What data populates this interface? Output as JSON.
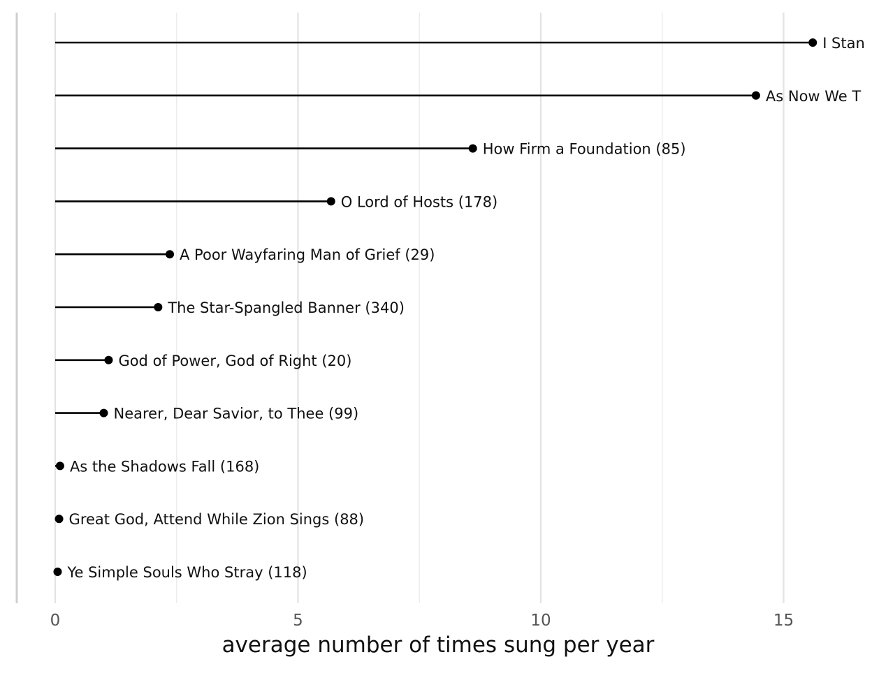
{
  "chart_data": {
    "type": "lollipop",
    "orientation": "horizontal",
    "xlabel": "average number of times sung per year",
    "ylabel": "",
    "title": "",
    "xlim": [
      0,
      16.5
    ],
    "xticks": [
      0,
      5,
      10,
      15
    ],
    "xtick_labels": [
      "0",
      "5",
      "10",
      "15"
    ],
    "grid": "vertical gridlines only",
    "legend": "none",
    "label_placement": "right of each point",
    "colors": {
      "stem": "#000000",
      "point": "#000000",
      "grid_major": "#e3e3e3",
      "grid_minor": "#ececec",
      "axis_line": "#cfcfcf",
      "tick_label": "#555555",
      "axis_title": "#111111"
    },
    "series": [
      {
        "points": [
          {
            "label": "I Stan",
            "value": 15.6
          },
          {
            "label": "As Now We T",
            "value": 14.43
          },
          {
            "label": "How Firm a Foundation (85)",
            "value": 8.6
          },
          {
            "label": "O Lord of Hosts (178)",
            "value": 5.68
          },
          {
            "label": "A Poor Wayfaring Man of Grief (29)",
            "value": 2.36
          },
          {
            "label": "The Star-Spangled Banner (340)",
            "value": 2.12
          },
          {
            "label": "God of Power, God of Right (20)",
            "value": 1.1
          },
          {
            "label": "Nearer, Dear Savior, to Thee (99)",
            "value": 1.0
          },
          {
            "label": "As the Shadows Fall (168)",
            "value": 0.1
          },
          {
            "label": "Great God, Attend While Zion Sings (88)",
            "value": 0.08
          },
          {
            "label": "Ye Simple Souls Who Stray (118)",
            "value": 0.05
          }
        ]
      }
    ]
  }
}
